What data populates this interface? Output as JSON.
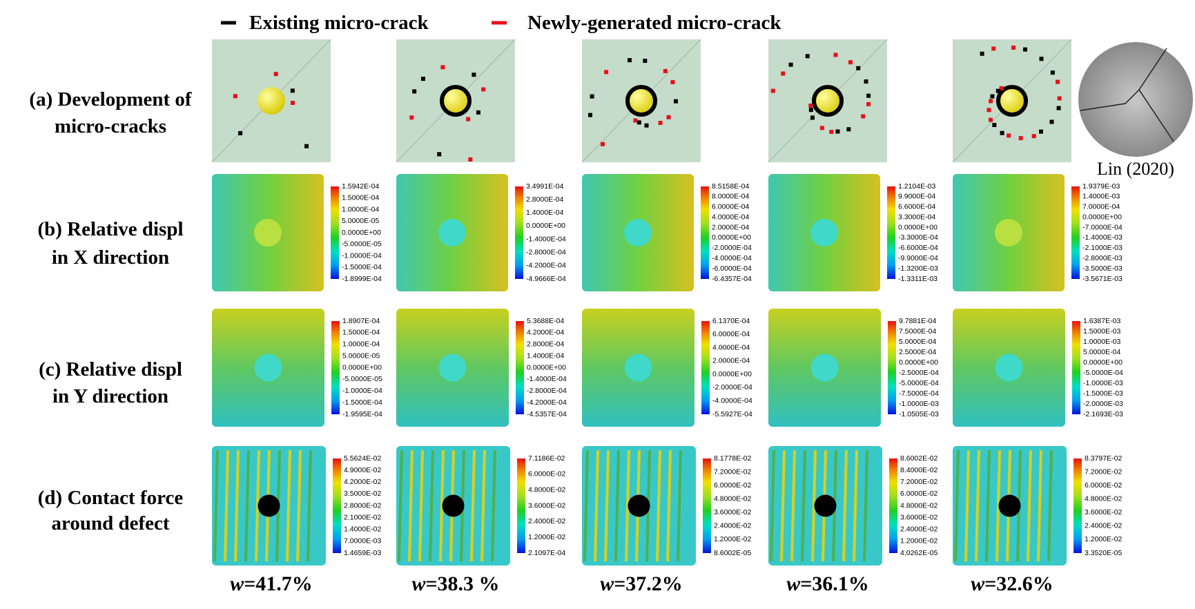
{
  "legend": [
    {
      "label": "Existing micro-crack",
      "color": "#000000"
    },
    {
      "label": "Newly-generated micro-crack",
      "color": "#e8101a"
    }
  ],
  "rows": [
    {
      "label": [
        "(a) Development of",
        "micro-cracks"
      ]
    },
    {
      "label": [
        "(b) Relative displ",
        "in X direction"
      ],
      "colorbars": [
        [
          "1.5942E-04",
          "1.5000E-04",
          "1.0000E-04",
          "5.0000E-05",
          "0.0000E+00",
          "-5.0000E-05",
          "-1.0000E-04",
          "-1.5000E-04",
          "-1.8999E-04"
        ],
        [
          "3.4991E-04",
          "2.8000E-04",
          "1.4000E-04",
          "0.0000E+00",
          "-1.4000E-04",
          "-2.8000E-04",
          "-4.2000E-04",
          "-4.9666E-04"
        ],
        [
          "8.5158E-04",
          "8.0000E-04",
          "6.0000E-04",
          "4.0000E-04",
          "2.0000E-04",
          "0.0000E+00",
          "-2.0000E-04",
          "-4.0000E-04",
          "-6.0000E-04",
          "-6.4357E-04"
        ],
        [
          "1.2104E-03",
          "9.9000E-04",
          "6.6000E-04",
          "3.3000E-04",
          "0.0000E+00",
          "-3.3000E-04",
          "-6.6000E-04",
          "-9.9000E-04",
          "-1.3200E-03",
          "-1.3311E-03"
        ],
        [
          "1.9379E-03",
          "1.4000E-03",
          "7.0000E-04",
          "0.0000E+00",
          "-7.0000E-04",
          "-1.4000E-03",
          "-2.1000E-03",
          "-2.8000E-03",
          "-3.5000E-03",
          "-3.5671E-03"
        ]
      ]
    },
    {
      "label": [
        "(c) Relative displ",
        "in Y direction"
      ],
      "colorbars": [
        [
          "1.8907E-04",
          "1.5000E-04",
          "1.0000E-04",
          "5.0000E-05",
          "0.0000E+00",
          "-5.0000E-05",
          "-1.0000E-04",
          "-1.5000E-04",
          "-1.9595E-04"
        ],
        [
          "5.3688E-04",
          "4.2000E-04",
          "2.8000E-04",
          "1.4000E-04",
          "0.0000E+00",
          "-1.4000E-04",
          "-2.8000E-04",
          "-4.2000E-04",
          "-4.5357E-04"
        ],
        [
          "6.1370E-04",
          "6.0000E-04",
          "4.0000E-04",
          "2.0000E-04",
          "0.0000E+00",
          "-2.0000E-04",
          "-4.0000E-04",
          "-5.5927E-04"
        ],
        [
          "9.7881E-04",
          "7.5000E-04",
          "5.0000E-04",
          "2.5000E-04",
          "0.0000E+00",
          "-2.5000E-04",
          "-5.0000E-04",
          "-7.5000E-04",
          "-1.0000E-03",
          "-1.0505E-03"
        ],
        [
          "1.6387E-03",
          "1.5000E-03",
          "1.0000E-03",
          "5.0000E-04",
          "0.0000E+00",
          "-5.0000E-04",
          "-1.0000E-03",
          "-1.5000E-03",
          "-2.0000E-03",
          "-2.1693E-03"
        ]
      ]
    },
    {
      "label": [
        "(d) Contact force",
        "around defect"
      ],
      "colorbars": [
        [
          "5.5624E-02",
          "4.9000E-02",
          "4.2000E-02",
          "3.5000E-02",
          "2.8000E-02",
          "2.1000E-02",
          "1.4000E-02",
          "7.0000E-03",
          "1.4659E-03"
        ],
        [
          "7.1186E-02",
          "6.0000E-02",
          "4.8000E-02",
          "3.6000E-02",
          "2.4000E-02",
          "1.2000E-02",
          "2.1097E-04"
        ],
        [
          "8.1778E-02",
          "7.2000E-02",
          "6.0000E-02",
          "4.8000E-02",
          "3.6000E-02",
          "2.4000E-02",
          "1.2000E-02",
          "8.6002E-05"
        ],
        [
          "8.6002E-02",
          "8.4000E-02",
          "7.2000E-02",
          "6.0000E-02",
          "4.8000E-02",
          "3.6000E-02",
          "2.4000E-02",
          "1.2000E-02",
          "4.0262E-05"
        ],
        [
          "8.3797E-02",
          "7.2000E-02",
          "6.0000E-02",
          "4.8000E-02",
          "3.6000E-02",
          "2.4000E-02",
          "1.2000E-02",
          "3.3520E-05"
        ]
      ]
    }
  ],
  "columns": [
    {
      "var": "w",
      "text": "=41.7%"
    },
    {
      "var": "w",
      "text": "=38.3 %"
    },
    {
      "var": "w",
      "text": "=37.2%"
    },
    {
      "var": "w",
      "text": "=36.1%"
    },
    {
      "var": "w",
      "text": "=32.6%"
    }
  ],
  "photo_caption": "Lin (2020)"
}
